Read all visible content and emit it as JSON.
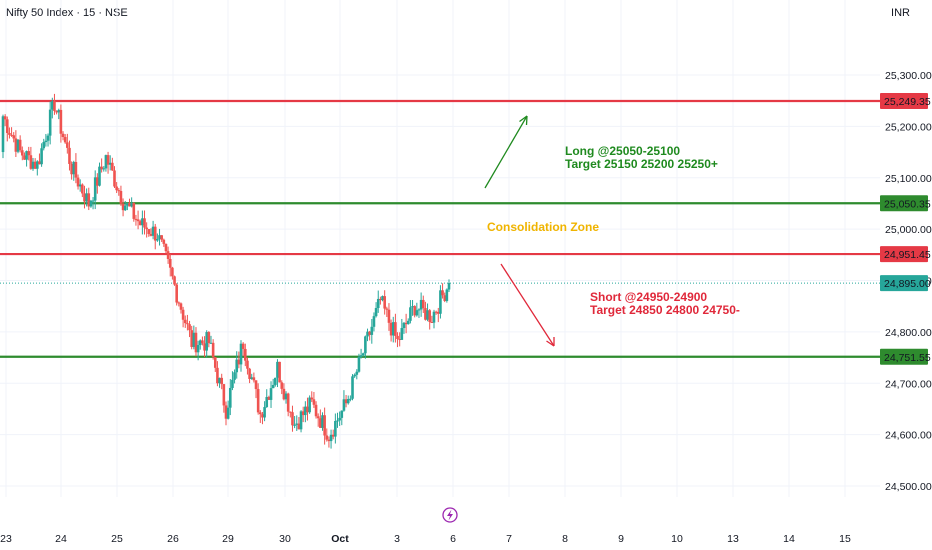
{
  "header": {
    "title": "Nifty 50 Index · 15 · NSE",
    "currency": "INR"
  },
  "colors": {
    "up": "#26a69a",
    "down": "#ef5350",
    "resistance": "#e53945",
    "support": "#2e8b2e",
    "long_text": "#1f8a1f",
    "short_text": "#e0283a",
    "zone_text": "#f0b400",
    "current_price": "#26a69a"
  },
  "chart_data": {
    "type": "candlestick",
    "symbol": "Nifty 50 Index",
    "interval": "15",
    "exchange": "NSE",
    "ylim": [
      24450,
      25350
    ],
    "y_ticks": [
      24500,
      24600,
      24700,
      24800,
      24900,
      25000,
      25100,
      25200,
      25300
    ],
    "y_tick_labels": [
      "24,500.00",
      "24,600.00",
      "24,700.00",
      "24,800.00",
      "24,900.00",
      "25,000.00",
      "25,100.00",
      "25,200.00",
      "25,300.00"
    ],
    "x_tick_labels": [
      "23",
      "24",
      "25",
      "26",
      "29",
      "30",
      "Oct",
      "3",
      "6",
      "7",
      "8",
      "9",
      "10",
      "13",
      "14",
      "15"
    ],
    "current_price": 24895.0,
    "current_price_label": "24,895.00",
    "levels": [
      {
        "kind": "resistance",
        "value": 25249.35,
        "label": "25,249.35"
      },
      {
        "kind": "support",
        "value": 25050.35,
        "label": "25,050.35"
      },
      {
        "kind": "resistance",
        "value": 24951.45,
        "label": "24,951.45"
      },
      {
        "kind": "support",
        "value": 24751.55,
        "label": "24,751.55"
      }
    ],
    "annotations": {
      "long": [
        "Long @25050-25100",
        "Target 25150 25200 25250+"
      ],
      "short": [
        "Short @24950-24900",
        "Target 24850 24800 24750-"
      ],
      "zone": "Consolidation Zone"
    },
    "ohlc_anchors": [
      {
        "date": "23",
        "close": 25220
      },
      {
        "date": "23",
        "close": 25150
      },
      {
        "date": "23",
        "close": 25125
      },
      {
        "date": "24",
        "close": 25245
      },
      {
        "date": "24",
        "close": 25120
      },
      {
        "date": "24",
        "close": 25050
      },
      {
        "date": "24",
        "close": 25140
      },
      {
        "date": "25",
        "close": 25055
      },
      {
        "date": "25",
        "close": 25010
      },
      {
        "date": "25",
        "close": 24990
      },
      {
        "date": "26",
        "close": 24890
      },
      {
        "date": "26",
        "close": 24780
      },
      {
        "date": "26",
        "close": 24780
      },
      {
        "date": "29",
        "close": 24650
      },
      {
        "date": "29",
        "close": 24780
      },
      {
        "date": "29",
        "close": 24640
      },
      {
        "date": "30",
        "close": 24730
      },
      {
        "date": "30",
        "close": 24620
      },
      {
        "date": "30",
        "close": 24660
      },
      {
        "date": "Oct",
        "close": 24600
      },
      {
        "date": "Oct",
        "close": 24660
      },
      {
        "date": "Oct",
        "close": 24760
      },
      {
        "date": "3",
        "close": 24860
      },
      {
        "date": "3",
        "close": 24780
      },
      {
        "date": "3",
        "close": 24850
      },
      {
        "date": "6",
        "close": 24830
      },
      {
        "date": "6",
        "close": 24895
      }
    ]
  }
}
